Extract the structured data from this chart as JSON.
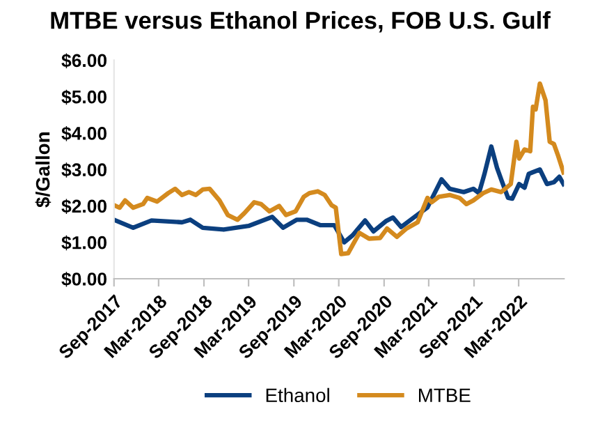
{
  "chart_data": {
    "type": "line",
    "title": "MTBE versus Ethanol Prices, FOB U.S. Gulf",
    "ylabel": "$/Gallon",
    "ylim": [
      0,
      6
    ],
    "yticks": [
      {
        "value": 0,
        "label": "$0.00"
      },
      {
        "value": 1,
        "label": "$1.00"
      },
      {
        "value": 2,
        "label": "$2.00"
      },
      {
        "value": 3,
        "label": "$3.00"
      },
      {
        "value": 4,
        "label": "$4.00"
      },
      {
        "value": 5,
        "label": "$5.00"
      },
      {
        "value": 6,
        "label": "$6.00"
      }
    ],
    "xlim": [
      "2017-09-01",
      "2022-09-01"
    ],
    "xticks": [
      {
        "value": "2017-09-01",
        "label": "Sep-2017"
      },
      {
        "value": "2018-03-01",
        "label": "Mar-2018"
      },
      {
        "value": "2018-09-01",
        "label": "Sep-2018"
      },
      {
        "value": "2019-03-01",
        "label": "Mar-2019"
      },
      {
        "value": "2019-09-01",
        "label": "Sep-2019"
      },
      {
        "value": "2020-03-01",
        "label": "Mar-2020"
      },
      {
        "value": "2020-09-01",
        "label": "Sep-2020"
      },
      {
        "value": "2021-03-01",
        "label": "Mar-2021"
      },
      {
        "value": "2021-09-01",
        "label": "Sep-2021"
      },
      {
        "value": "2022-03-01",
        "label": "Mar-2022"
      }
    ],
    "grid": false,
    "legend": "bottom",
    "marker": "none",
    "line_style": "solid",
    "series": [
      {
        "name": "Ethanol",
        "color": "#0b3f7f",
        "x": [
          "2017-09-01",
          "2017-11-18",
          "2018-01-31",
          "2018-06-04",
          "2018-07-08",
          "2018-08-27",
          "2018-11-20",
          "2019-03-01",
          "2019-06-05",
          "2019-07-19",
          "2019-09-13",
          "2019-10-23",
          "2019-12-18",
          "2020-02-12",
          "2020-03-23",
          "2020-04-26",
          "2020-06-16",
          "2020-07-20",
          "2020-09-08",
          "2020-10-07",
          "2020-11-09",
          "2020-12-30",
          "2021-02-24",
          "2021-04-22",
          "2021-05-25",
          "2021-07-21",
          "2021-08-29",
          "2021-09-21",
          "2021-10-13",
          "2021-11-10",
          "2021-12-03",
          "2021-12-20",
          "2022-01-17",
          "2022-02-03",
          "2022-03-03",
          "2022-03-25",
          "2022-04-11",
          "2022-05-26",
          "2022-06-24",
          "2022-07-22",
          "2022-08-13",
          "2022-08-30"
        ],
        "values": [
          1.62,
          1.4,
          1.6,
          1.55,
          1.62,
          1.4,
          1.35,
          1.45,
          1.7,
          1.4,
          1.62,
          1.62,
          1.47,
          1.47,
          1.0,
          1.19,
          1.6,
          1.3,
          1.58,
          1.68,
          1.42,
          1.68,
          1.96,
          2.73,
          2.47,
          2.38,
          2.47,
          2.35,
          2.87,
          3.63,
          3.05,
          2.73,
          2.22,
          2.2,
          2.6,
          2.5,
          2.88,
          3.0,
          2.6,
          2.65,
          2.8,
          2.6
        ]
      },
      {
        "name": "MTBE",
        "color": "#d48a1e",
        "x": [
          "2017-09-01",
          "2017-09-24",
          "2017-10-16",
          "2017-11-18",
          "2017-12-28",
          "2018-01-14",
          "2018-02-23",
          "2018-04-09",
          "2018-05-07",
          "2018-06-04",
          "2018-07-02",
          "2018-07-30",
          "2018-08-27",
          "2018-09-24",
          "2018-11-03",
          "2018-12-07",
          "2019-01-15",
          "2019-02-12",
          "2019-03-24",
          "2019-04-21",
          "2019-05-25",
          "2019-07-03",
          "2019-07-31",
          "2019-09-08",
          "2019-10-11",
          "2019-11-03",
          "2019-12-07",
          "2020-01-04",
          "2020-02-01",
          "2020-02-18",
          "2020-03-11",
          "2020-04-08",
          "2020-05-24",
          "2020-07-02",
          "2020-08-16",
          "2020-09-13",
          "2020-10-23",
          "2020-12-01",
          "2021-01-15",
          "2021-02-24",
          "2021-03-13",
          "2021-04-11",
          "2021-05-25",
          "2021-07-04",
          "2021-08-01",
          "2021-08-29",
          "2021-10-08",
          "2021-11-10",
          "2021-12-20",
          "2022-01-28",
          "2022-02-20",
          "2022-03-03",
          "2022-03-25",
          "2022-04-17",
          "2022-04-28",
          "2022-05-09",
          "2022-05-26",
          "2022-06-18",
          "2022-07-05",
          "2022-07-22",
          "2022-08-07",
          "2022-08-30"
        ],
        "values": [
          2.02,
          1.95,
          2.15,
          1.95,
          2.05,
          2.22,
          2.12,
          2.35,
          2.47,
          2.3,
          2.38,
          2.3,
          2.45,
          2.47,
          2.15,
          1.75,
          1.62,
          1.8,
          2.1,
          2.05,
          1.85,
          2.0,
          1.75,
          1.85,
          2.25,
          2.35,
          2.4,
          2.3,
          2.02,
          1.95,
          0.68,
          0.7,
          1.26,
          1.1,
          1.12,
          1.38,
          1.15,
          1.38,
          1.55,
          2.22,
          2.1,
          2.25,
          2.3,
          2.22,
          2.05,
          2.15,
          2.35,
          2.45,
          2.38,
          2.6,
          3.76,
          3.3,
          3.55,
          3.5,
          4.72,
          4.65,
          5.36,
          4.9,
          3.76,
          3.7,
          3.4,
          2.92
        ]
      }
    ]
  }
}
